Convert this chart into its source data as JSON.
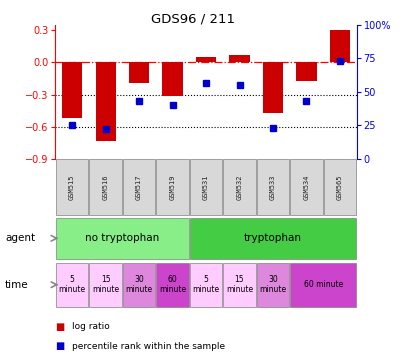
{
  "title": "GDS96 / 211",
  "samples": [
    "GSM515",
    "GSM516",
    "GSM517",
    "GSM519",
    "GSM531",
    "GSM532",
    "GSM533",
    "GSM534",
    "GSM565"
  ],
  "log_ratio": [
    -0.52,
    -0.73,
    -0.19,
    -0.31,
    0.05,
    0.07,
    -0.47,
    -0.17,
    0.3
  ],
  "percentile": [
    25,
    22,
    43,
    40,
    57,
    55,
    23,
    43,
    73
  ],
  "ylim_left": [
    -0.9,
    0.35
  ],
  "ylim_right": [
    0,
    100
  ],
  "yticks_left": [
    0.3,
    0.0,
    -0.3,
    -0.6,
    -0.9
  ],
  "yticks_right": [
    100,
    75,
    50,
    25,
    0
  ],
  "bar_color": "#cc0000",
  "dot_color": "#0000cc",
  "agent_no_tryp_color": "#88ee88",
  "agent_tryp_color": "#44cc44",
  "time_colors_map": {
    "5\nminute_no": "#ffbbff",
    "15\nminute_no": "#ffbbff",
    "30\nminute_no": "#ee66ee",
    "60\nminute_no": "#dd22dd",
    "5\nminute_yes": "#ffbbff",
    "15\nminute_yes": "#ffbbff",
    "30\nminute_yes": "#ee66ee",
    "60 minute_yes": "#dd22dd"
  },
  "agent_row": [
    {
      "label": "no tryptophan",
      "start": 0,
      "end": 4
    },
    {
      "label": "tryptophan",
      "start": 4,
      "end": 9
    }
  ],
  "time_row": [
    {
      "label": "5\nminute",
      "start": 0,
      "end": 1,
      "color": "#ffccff"
    },
    {
      "label": "15\nminute",
      "start": 1,
      "end": 2,
      "color": "#ffccff"
    },
    {
      "label": "30\nminute",
      "start": 2,
      "end": 3,
      "color": "#dd88dd"
    },
    {
      "label": "60\nminute",
      "start": 3,
      "end": 4,
      "color": "#cc44cc"
    },
    {
      "label": "5\nminute",
      "start": 4,
      "end": 5,
      "color": "#ffccff"
    },
    {
      "label": "15\nminute",
      "start": 5,
      "end": 6,
      "color": "#ffccff"
    },
    {
      "label": "30\nminute",
      "start": 6,
      "end": 7,
      "color": "#dd88dd"
    },
    {
      "label": "60 minute",
      "start": 7,
      "end": 9,
      "color": "#cc44cc"
    }
  ],
  "legend_bar_label": "log ratio",
  "legend_dot_label": "percentile rank within the sample"
}
